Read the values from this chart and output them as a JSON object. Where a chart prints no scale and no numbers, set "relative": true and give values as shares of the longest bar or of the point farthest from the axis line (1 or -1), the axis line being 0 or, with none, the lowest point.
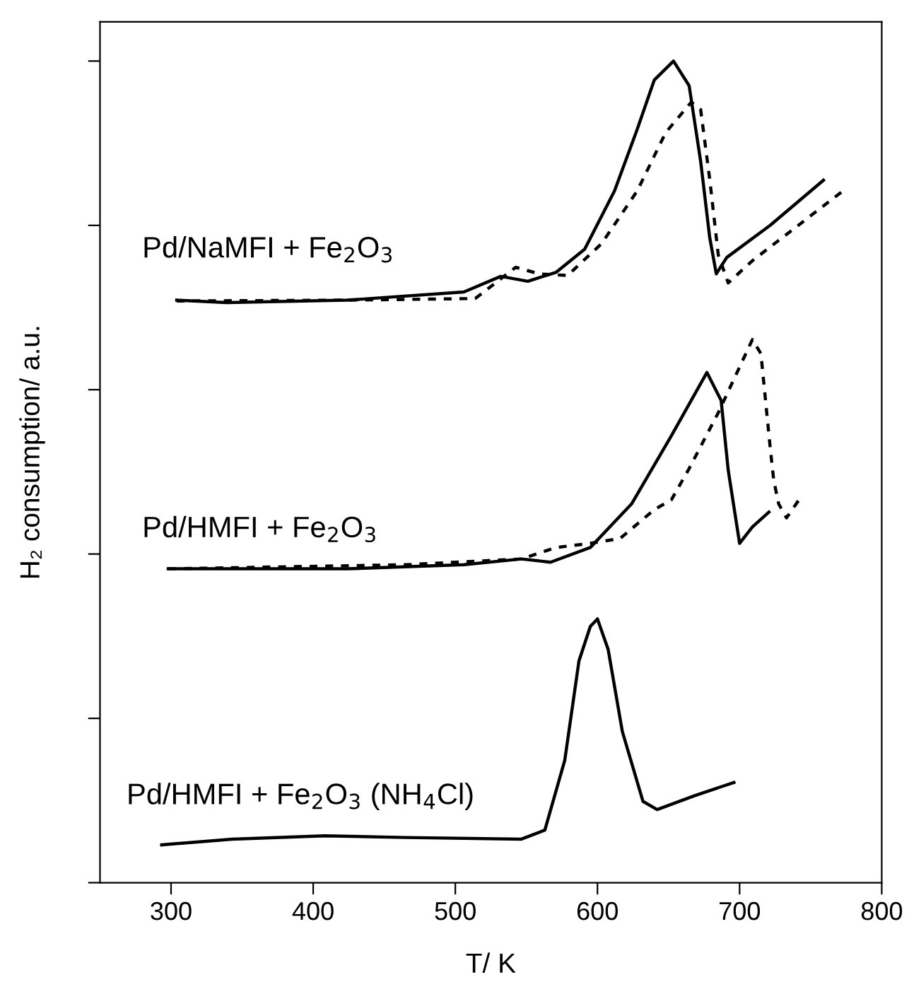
{
  "chart_data": {
    "type": "line",
    "relative": true,
    "xlabel": "T/ K",
    "ylabel": "H₂ consumption/ a.u.",
    "xlim": [
      250,
      800
    ],
    "xticks": [
      300,
      400,
      500,
      600,
      700,
      800
    ],
    "tick_labels": "x",
    "marker": "none",
    "series": [
      {
        "color": "#000000",
        "line_style": "solid",
        "x": [
          304,
          339,
          424,
          506,
          532,
          551,
          571,
          591,
          612,
          628,
          640,
          653.5,
          664.5,
          672.6,
          679,
          683.6,
          691,
          721.5,
          759
        ],
        "values": [
          0.709,
          0.706,
          0.709,
          0.719,
          0.738,
          0.732,
          0.743,
          0.771,
          0.842,
          0.917,
          0.977,
          1.0,
          0.97,
          0.878,
          0.785,
          0.741,
          0.761,
          0.8,
          0.855
        ]
      },
      {
        "color": "#000000",
        "line_style": "dashed",
        "x": [
          304,
          424,
          514,
          542.5,
          559,
          579,
          603,
          628,
          648,
          666,
          672.6,
          679,
          685,
          692,
          709,
          772
        ],
        "values": [
          0.708,
          0.709,
          0.711,
          0.749,
          0.741,
          0.739,
          0.778,
          0.842,
          0.913,
          0.95,
          0.941,
          0.856,
          0.764,
          0.73,
          0.757,
          0.841
        ]
      },
      {
        "color": "#000000",
        "line_style": "solid",
        "x": [
          298,
          424,
          506,
          546.5,
          567,
          595,
          624,
          652,
          677,
          687,
          692,
          700,
          709,
          720.6
        ],
        "values": [
          0.382,
          0.382,
          0.387,
          0.394,
          0.39,
          0.408,
          0.461,
          0.544,
          0.621,
          0.587,
          0.502,
          0.413,
          0.433,
          0.451
        ]
      },
      {
        "color": "#000000",
        "line_style": "dashed",
        "x": [
          298,
          465,
          546.5,
          571,
          595,
          616,
          640,
          652,
          664.5,
          685,
          709,
          715,
          721.5,
          724,
          727.5,
          733,
          742.6
        ],
        "values": [
          0.382,
          0.387,
          0.394,
          0.408,
          0.413,
          0.419,
          0.454,
          0.466,
          0.504,
          0.572,
          0.661,
          0.644,
          0.53,
          0.49,
          0.461,
          0.444,
          0.468
        ]
      },
      {
        "color": "#000000",
        "line_style": "solid",
        "x": [
          293.4,
          343,
          408,
          465,
          546.5,
          563,
          577,
          587,
          595,
          600,
          607.5,
          617.5,
          632,
          642,
          668.5,
          696
        ],
        "values": [
          0.046,
          0.053,
          0.057,
          0.055,
          0.053,
          0.064,
          0.149,
          0.27,
          0.312,
          0.321,
          0.284,
          0.184,
          0.099,
          0.089,
          0.106,
          0.122
        ]
      }
    ],
    "annotations": [
      "Pd/NaMFI + Fe$_{2}$O$_{3}$",
      "Pd/HMFI + Fe$_{2}$O$_{3}$",
      "Pd/HMFI + Fe$_{2}$O$_{3}$ (NH$_{4}$Cl)"
    ]
  }
}
